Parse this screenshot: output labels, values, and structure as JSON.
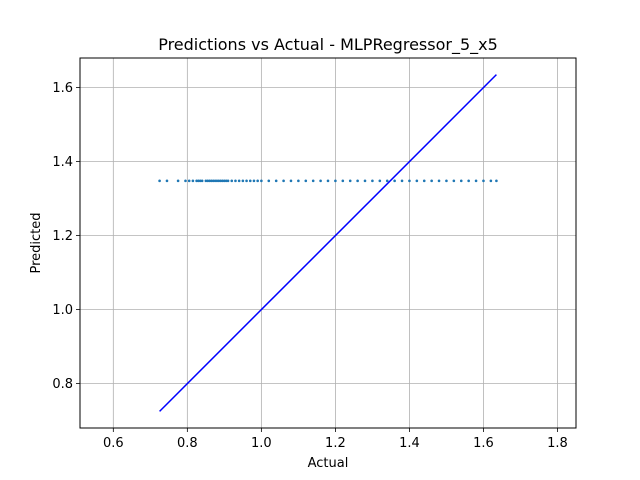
{
  "chart_data": {
    "type": "scatter",
    "title": "Predictions vs Actual - MLPRegressor_5_x5",
    "xlabel": "Actual",
    "ylabel": "Predicted",
    "xlim": [
      0.51,
      1.85
    ],
    "ylim": [
      0.68,
      1.68
    ],
    "xticks": [
      0.6,
      0.8,
      1.0,
      1.2,
      1.4,
      1.6,
      1.8
    ],
    "yticks": [
      0.8,
      1.0,
      1.2,
      1.4,
      1.6
    ],
    "xtick_labels": [
      "0.6",
      "0.8",
      "1.0",
      "1.2",
      "1.4",
      "1.6",
      "1.8"
    ],
    "ytick_labels": [
      "0.8",
      "1.0",
      "1.2",
      "1.4",
      "1.6"
    ],
    "grid": true,
    "series": [
      {
        "type": "scatter",
        "color": "#1f77b4",
        "predicted_constant": 1.348,
        "x": [
          0.725,
          0.745,
          0.775,
          0.795,
          0.805,
          0.815,
          0.825,
          0.83,
          0.835,
          0.84,
          0.85,
          0.855,
          0.86,
          0.865,
          0.87,
          0.875,
          0.88,
          0.885,
          0.89,
          0.895,
          0.9,
          0.905,
          0.91,
          0.92,
          0.93,
          0.94,
          0.95,
          0.96,
          0.97,
          0.98,
          0.99,
          1.0,
          1.02,
          1.04,
          1.06,
          1.08,
          1.1,
          1.12,
          1.14,
          1.16,
          1.18,
          1.2,
          1.22,
          1.24,
          1.26,
          1.28,
          1.3,
          1.32,
          1.34,
          1.36,
          1.38,
          1.4,
          1.42,
          1.44,
          1.46,
          1.48,
          1.5,
          1.52,
          1.54,
          1.56,
          1.58,
          1.6,
          1.62,
          1.635
        ]
      },
      {
        "type": "line",
        "color": "#0000ff",
        "x": [
          0.725,
          1.635
        ],
        "y": [
          0.725,
          1.635
        ]
      }
    ]
  }
}
